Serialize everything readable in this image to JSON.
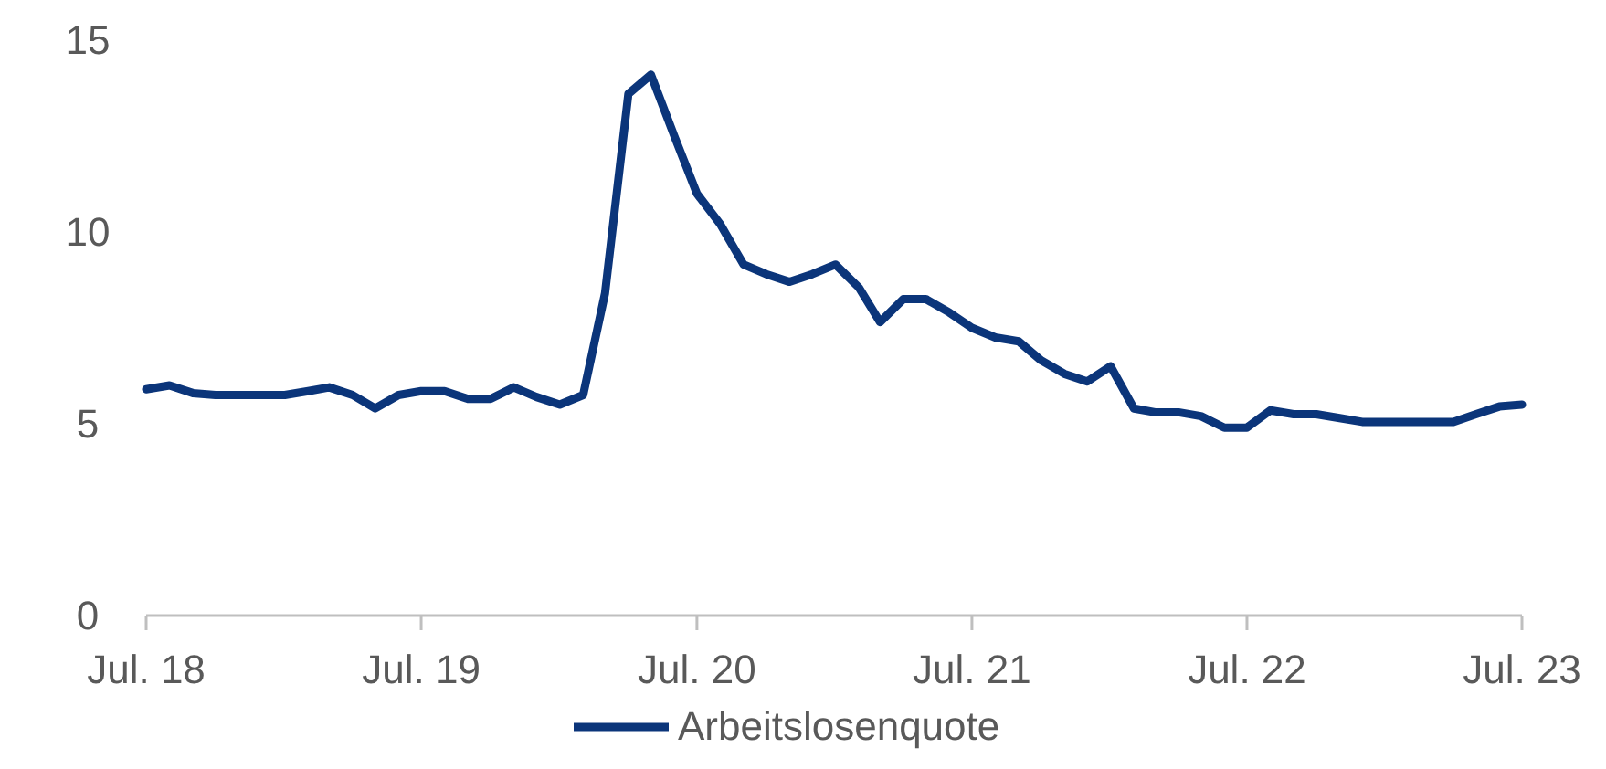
{
  "chart_data": {
    "type": "line",
    "x": [
      "2018-07",
      "2018-08",
      "2018-09",
      "2018-10",
      "2018-11",
      "2018-12",
      "2019-01",
      "2019-02",
      "2019-03",
      "2019-04",
      "2019-05",
      "2019-06",
      "2019-07",
      "2019-08",
      "2019-09",
      "2019-10",
      "2019-11",
      "2019-12",
      "2020-01",
      "2020-02",
      "2020-03",
      "2020-04",
      "2020-05",
      "2020-06",
      "2020-07",
      "2020-08",
      "2020-09",
      "2020-10",
      "2020-11",
      "2020-12",
      "2021-01",
      "2021-02",
      "2021-03",
      "2021-04",
      "2021-05",
      "2021-06",
      "2021-07",
      "2021-08",
      "2021-09",
      "2021-10",
      "2021-11",
      "2021-12",
      "2022-01",
      "2022-02",
      "2022-03",
      "2022-04",
      "2022-05",
      "2022-06",
      "2022-07",
      "2022-08",
      "2022-09",
      "2022-10",
      "2022-11",
      "2022-12",
      "2023-01",
      "2023-02",
      "2023-03",
      "2023-04",
      "2023-05",
      "2023-06",
      "2023-07"
    ],
    "series": [
      {
        "name": "Arbeitslosenquote",
        "color": "#0b357a",
        "values": [
          5.9,
          6.0,
          5.8,
          5.75,
          5.75,
          5.75,
          5.75,
          5.85,
          5.95,
          5.75,
          5.4,
          5.75,
          5.85,
          5.85,
          5.65,
          5.65,
          5.95,
          5.7,
          5.5,
          5.75,
          8.4,
          13.6,
          14.1,
          12.5,
          11.0,
          10.2,
          9.15,
          8.9,
          8.7,
          8.9,
          9.15,
          8.55,
          7.65,
          8.25,
          8.25,
          7.9,
          7.5,
          7.25,
          7.15,
          6.65,
          6.3,
          6.1,
          6.5,
          5.4,
          5.3,
          5.3,
          5.2,
          4.9,
          4.9,
          5.35,
          5.25,
          5.25,
          5.15,
          5.05,
          5.05,
          5.05,
          5.05,
          5.05,
          5.25,
          5.45,
          5.5
        ]
      }
    ],
    "xlim": [
      "2018-07",
      "2023-07"
    ],
    "xticks": [
      {
        "value": "2018-07",
        "label": "Jul. 18"
      },
      {
        "value": "2019-07",
        "label": "Jul. 19"
      },
      {
        "value": "2020-07",
        "label": "Jul. 20"
      },
      {
        "value": "2021-07",
        "label": "Jul. 21"
      },
      {
        "value": "2022-07",
        "label": "Jul. 22"
      },
      {
        "value": "2023-07",
        "label": "Jul. 23"
      }
    ],
    "ylim": [
      0,
      15
    ],
    "yticks": [
      0,
      5,
      10,
      15
    ],
    "grid": false,
    "legend": "bottom",
    "line_style": "solid",
    "marker": "none"
  }
}
